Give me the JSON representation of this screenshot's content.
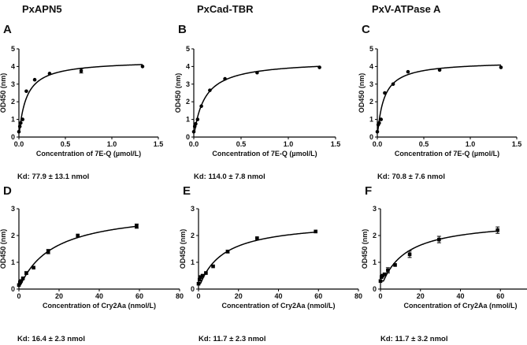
{
  "column_titles": [
    "PxAPN5",
    "PxCad-TBR",
    "PxV-ATPase A"
  ],
  "chart_data": [
    {
      "type": "scatter",
      "panel": "A",
      "column": "PxAPN5",
      "xlabel": "Concentration of 7E-Q (µmol/L)",
      "ylabel": "OD450 (nm)",
      "xlim": [
        0,
        1.5
      ],
      "ylim": [
        0,
        5
      ],
      "xticks": [
        0,
        0.5,
        1.0,
        1.5
      ],
      "xtick_labels": [
        "0.0",
        "0.5",
        "1.0",
        "1.5"
      ],
      "yticks": [
        0,
        1,
        2,
        3,
        4,
        5
      ],
      "ytick_labels": [
        "0",
        "1",
        "2",
        "3",
        "4",
        "5"
      ],
      "x": [
        0,
        0.01,
        0.02,
        0.04,
        0.08,
        0.17,
        0.33,
        0.67,
        1.33
      ],
      "y": [
        0.3,
        0.6,
        0.8,
        1.0,
        2.6,
        3.25,
        3.6,
        3.75,
        4.0
      ],
      "err": [
        0,
        0,
        0,
        0,
        0,
        0,
        0,
        0.12,
        0
      ],
      "fit": {
        "model": "one-site binding",
        "bmax": 4.35,
        "kd": 0.078
      },
      "kd_text": "Kd: 77.9 ± 13.1 nmol"
    },
    {
      "type": "scatter",
      "panel": "B",
      "column": "PxCad-TBR",
      "xlabel": "Concentration of 7E-Q (µmol/L)",
      "ylabel": "OD450 (nm)",
      "xlim": [
        0,
        1.5
      ],
      "ylim": [
        0,
        5
      ],
      "xticks": [
        0,
        0.5,
        1.0,
        1.5
      ],
      "xtick_labels": [
        "0.0",
        "0.5",
        "1.0",
        "1.5"
      ],
      "yticks": [
        0,
        1,
        2,
        3,
        4,
        5
      ],
      "ytick_labels": [
        "0",
        "1",
        "2",
        "3",
        "4",
        "5"
      ],
      "x": [
        0,
        0.01,
        0.02,
        0.04,
        0.08,
        0.17,
        0.33,
        0.67,
        1.33
      ],
      "y": [
        0.3,
        0.6,
        0.75,
        1.0,
        1.75,
        2.65,
        3.3,
        3.65,
        3.95
      ],
      "err": [
        0,
        0,
        0,
        0,
        0,
        0,
        0,
        0,
        0
      ],
      "fit": {
        "model": "one-site binding",
        "bmax": 4.35,
        "kd": 0.114
      },
      "kd_text": "Kd: 114.0 ± 7.8 nmol"
    },
    {
      "type": "scatter",
      "panel": "C",
      "column": "PxV-ATPase A",
      "xlabel": "Concentration of 7E-Q (µmol/L)",
      "ylabel": "OD450 (nm)",
      "xlim": [
        0,
        1.5
      ],
      "ylim": [
        0,
        5
      ],
      "xticks": [
        0,
        0.5,
        1.0,
        1.5
      ],
      "xtick_labels": [
        "0.0",
        "0.5",
        "1.0",
        "1.5"
      ],
      "yticks": [
        0,
        1,
        2,
        3,
        4,
        5
      ],
      "ytick_labels": [
        "0",
        "1",
        "2",
        "3",
        "4",
        "5"
      ],
      "x": [
        0,
        0.01,
        0.02,
        0.04,
        0.08,
        0.17,
        0.33,
        0.67,
        1.33
      ],
      "y": [
        0.3,
        0.7,
        0.8,
        1.0,
        2.5,
        3.0,
        3.7,
        3.8,
        3.95
      ],
      "err": [
        0,
        0,
        0,
        0,
        0,
        0,
        0,
        0,
        0
      ],
      "fit": {
        "model": "one-site binding",
        "bmax": 4.3,
        "kd": 0.0708
      },
      "kd_text": "Kd: 70.8 ± 7.6 nmol"
    },
    {
      "type": "scatter",
      "panel": "D",
      "column": "PxAPN5",
      "xlabel": "Concentration of Cry2Aa (nmol/L)",
      "ylabel": "OD450 (nm)",
      "xlim": [
        0,
        80
      ],
      "ylim": [
        0,
        3
      ],
      "xticks": [
        0,
        20,
        40,
        60,
        80
      ],
      "xtick_labels": [
        "0",
        "20",
        "40",
        "60",
        "80"
      ],
      "yticks": [
        0,
        1,
        2,
        3
      ],
      "ytick_labels": [
        "0",
        "1",
        "2",
        "3"
      ],
      "x": [
        0,
        0.5,
        1,
        2,
        3.7,
        7.3,
        14.6,
        29.3,
        58.6
      ],
      "y": [
        0.15,
        0.25,
        0.3,
        0.4,
        0.6,
        0.8,
        1.4,
        2.0,
        2.35
      ],
      "err": [
        0,
        0,
        0,
        0,
        0.05,
        0,
        0.08,
        0,
        0.08
      ],
      "fit": {
        "model": "one-site binding",
        "bmax": 3.0,
        "kd": 16.4
      },
      "kd_text": "Kd: 16.4 ± 2.3 nmol"
    },
    {
      "type": "scatter",
      "panel": "E",
      "column": "PxCad-TBR",
      "xlabel": "Concentration of Cry2Aa (nmol/L)",
      "ylabel": "OD450 (nm)",
      "xlim": [
        0,
        80
      ],
      "ylim": [
        0,
        3
      ],
      "xticks": [
        0,
        20,
        40,
        60,
        80
      ],
      "xtick_labels": [
        "0",
        "20",
        "40",
        "60",
        "80"
      ],
      "yticks": [
        0,
        1,
        2,
        3
      ],
      "ytick_labels": [
        "0",
        "1",
        "2",
        "3"
      ],
      "x": [
        0,
        0.5,
        1,
        2,
        3.7,
        7.3,
        14.6,
        29.3,
        58.6
      ],
      "y": [
        0.2,
        0.35,
        0.45,
        0.5,
        0.6,
        0.85,
        1.4,
        1.9,
        2.15
      ],
      "err": [
        0,
        0,
        0,
        0,
        0,
        0,
        0.05,
        0,
        0
      ],
      "fit": {
        "model": "one-site binding",
        "bmax": 2.55,
        "kd": 11.7
      },
      "kd_text": "Kd: 11.7 ± 2.3 nmol"
    },
    {
      "type": "scatter",
      "panel": "F",
      "column": "PxV-ATPase A",
      "xlabel": "Concentration of Cry2Aa (nmol/L)",
      "ylabel": "OD450 (nm)",
      "xlim": [
        0,
        80
      ],
      "ylim": [
        0,
        3
      ],
      "xticks": [
        0,
        20,
        40,
        60,
        80
      ],
      "xtick_labels": [
        "0",
        "20",
        "40",
        "60",
        "80"
      ],
      "yticks": [
        0,
        1,
        2,
        3
      ],
      "ytick_labels": [
        "0",
        "1",
        "2",
        "3"
      ],
      "x": [
        0,
        0.5,
        1,
        2,
        3.7,
        7.3,
        14.6,
        29.3,
        58.6
      ],
      "y": [
        0.3,
        0.45,
        0.5,
        0.55,
        0.7,
        0.9,
        1.3,
        1.85,
        2.2
      ],
      "err": [
        0,
        0,
        0,
        0,
        0.1,
        0,
        0.12,
        0.12,
        0.12
      ],
      "fit": {
        "model": "one-site binding",
        "bmax": 2.6,
        "kd": 11.7
      },
      "kd_text": "Kd: 11.7 ± 3.2 nmol"
    }
  ]
}
